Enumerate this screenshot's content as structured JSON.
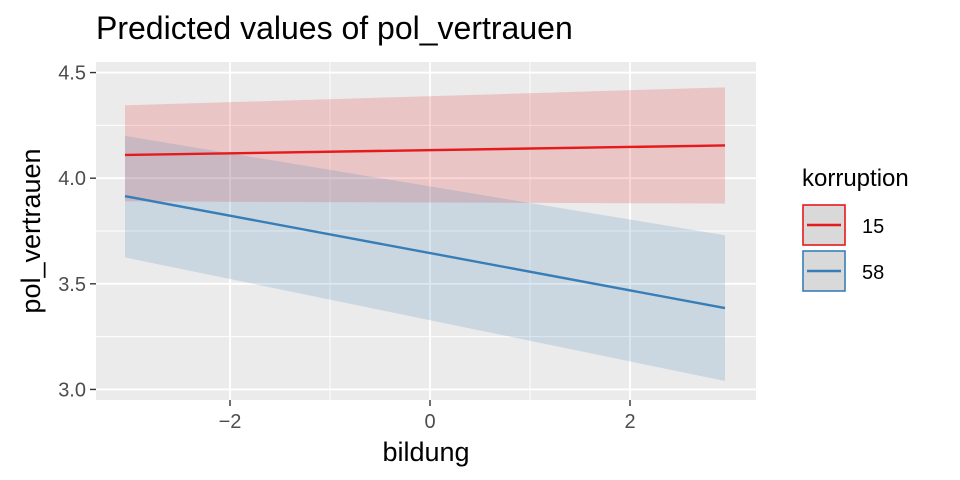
{
  "chart_data": {
    "type": "line",
    "title": "Predicted values of pol_vertrauen",
    "xlabel": "bildung",
    "ylabel": "pol_vertrauen",
    "xlim": [
      -3.34,
      3.26
    ],
    "ylim": [
      2.95,
      4.55
    ],
    "xticks": [
      -2,
      0,
      2
    ],
    "yticks": [
      3.0,
      3.5,
      4.0,
      4.5
    ],
    "ytick_labels": [
      "3.0",
      "3.5",
      "4.0",
      "4.5"
    ],
    "grid": true,
    "legend": {
      "title": "korruption",
      "position": "right"
    },
    "series": [
      {
        "name": "15",
        "color": "#e41a1c",
        "ribbon_color": "#e8c9cc",
        "x": [
          -3.05,
          2.95
        ],
        "y": [
          4.11,
          4.155
        ],
        "ci_low": [
          3.89,
          3.88
        ],
        "ci_high": [
          4.345,
          4.43
        ]
      },
      {
        "name": "58",
        "color": "#377eb8",
        "ribbon_color": "#cbd6df",
        "x": [
          -3.05,
          2.95
        ],
        "y": [
          3.915,
          3.385
        ],
        "ci_low": [
          3.625,
          3.04
        ],
        "ci_high": [
          4.2,
          3.73
        ]
      }
    ]
  }
}
